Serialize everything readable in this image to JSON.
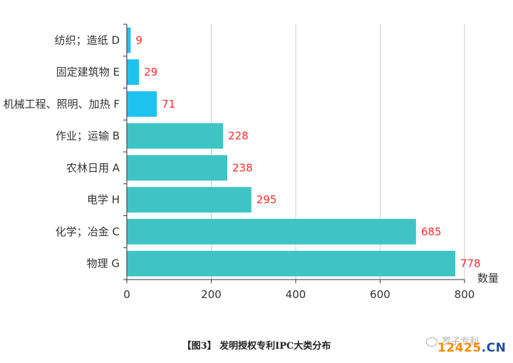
{
  "chart_data": {
    "type": "bar",
    "orientation": "horizontal",
    "categories": [
      "纺织；造纸 D",
      "固定建筑物 E",
      "机械工程、照明、加热 F",
      "作业；运输 B",
      "农林日用 A",
      "电学 H",
      "化学；冶金 C",
      "物理 G"
    ],
    "values": [
      9,
      29,
      71,
      228,
      238,
      295,
      685,
      778
    ],
    "bar_colors": [
      "#1ec2ef",
      "#1ec2ef",
      "#1ec2ef",
      "#3ec4c4",
      "#3ec4c4",
      "#3ec4c4",
      "#3ec4c4",
      "#3ec4c4"
    ],
    "value_label_color": "#ff2a2a",
    "xlabel": "数量",
    "ylabel": "",
    "xlim": [
      0,
      800
    ],
    "xticks": [
      0,
      200,
      400,
      600,
      800
    ],
    "grid": "vertical"
  },
  "caption": "【图3】 发明授权专利IPC大类分布",
  "watermark": "罗子专利",
  "site_badge": {
    "number": "12425",
    "tld": ".CN"
  }
}
